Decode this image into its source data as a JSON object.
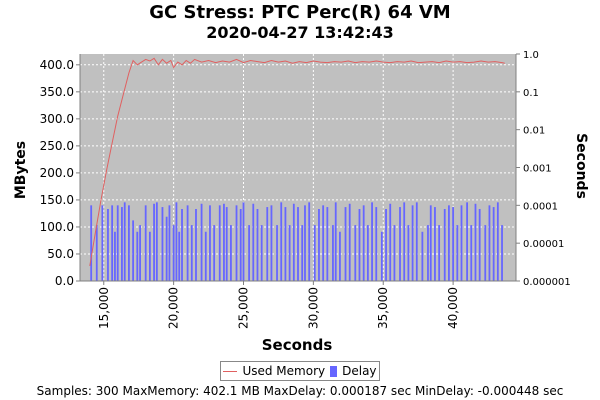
{
  "chart_data": {
    "type": "line",
    "title": "GC Stress: PTC Perc(R) 64 VM",
    "subtitle": "2020-04-27 13:42:43",
    "xlabel": "Seconds",
    "ylabel_left": "MBytes",
    "ylabel_right": "Seconds",
    "xlim": [
      13300,
      44500
    ],
    "ylim_left": [
      0,
      420
    ],
    "ylim_right": [
      1e-06,
      1.0
    ],
    "yscale_right": "log",
    "background": "#c0c0c0",
    "grid": true,
    "legend_position": "bottom-center",
    "x_tick_labels": [
      "15,000",
      "20,000",
      "25,000",
      "30,000",
      "35,000",
      "40,000"
    ],
    "y_left_tick_labels": [
      "0.0",
      "50.0",
      "100.0",
      "150.0",
      "200.0",
      "250.0",
      "300.0",
      "350.0",
      "400.0"
    ],
    "y_right_tick_labels": [
      "0.000001",
      "0.00001",
      "0.0001",
      "0.001",
      "0.01",
      "0.1",
      "1.0"
    ],
    "series": [
      {
        "name": "Used Memory",
        "axis": "left",
        "color": "#e06060",
        "x": [
          14000,
          14400,
          14800,
          15200,
          15600,
          16000,
          16400,
          16800,
          17100,
          17400,
          17700,
          18000,
          18300,
          18600,
          18900,
          19200,
          19500,
          19800,
          20000,
          20300,
          20600,
          20900,
          21200,
          21500,
          22000,
          22500,
          23000,
          23500,
          24000,
          24500,
          25000,
          25500,
          26000,
          26500,
          27000,
          27500,
          28000,
          28500,
          29000,
          29500,
          30000,
          30500,
          31000,
          31500,
          32000,
          32500,
          33000,
          33500,
          34000,
          34500,
          35000,
          35500,
          36000,
          36500,
          37000,
          37500,
          38000,
          38500,
          39000,
          39500,
          40000,
          40500,
          41000,
          41500,
          42000,
          42500,
          43000,
          43500,
          43700
        ],
        "values": [
          28,
          90,
          150,
          205,
          255,
          305,
          345,
          385,
          408,
          400,
          405,
          410,
          407,
          412,
          400,
          410,
          403,
          408,
          395,
          405,
          400,
          408,
          403,
          410,
          405,
          408,
          404,
          407,
          405,
          410,
          404,
          408,
          406,
          404,
          408,
          405,
          407,
          403,
          406,
          404,
          407,
          405,
          404,
          406,
          405,
          407,
          404,
          406,
          405,
          407,
          405,
          404,
          406,
          405,
          407,
          404,
          405,
          406,
          404,
          407,
          405,
          406,
          404,
          405,
          407,
          405,
          406,
          404,
          403
        ]
      },
      {
        "name": "Delay",
        "axis": "right",
        "type": "bar",
        "color": "#6666ff",
        "x": [
          14100,
          14500,
          14900,
          15300,
          15600,
          15800,
          16000,
          16300,
          16500,
          16800,
          17100,
          17400,
          17600,
          18000,
          18300,
          18600,
          18800,
          19200,
          19500,
          19700,
          20000,
          20200,
          20400,
          20600,
          21000,
          21300,
          21600,
          22000,
          22300,
          22600,
          22900,
          23300,
          23600,
          23800,
          24100,
          24500,
          24800,
          25000,
          25400,
          25700,
          26000,
          26300,
          26700,
          27000,
          27400,
          27700,
          28000,
          28300,
          28600,
          28900,
          29200,
          29400,
          29700,
          30100,
          30400,
          30700,
          31000,
          31400,
          31600,
          31900,
          32300,
          32600,
          33000,
          33300,
          33600,
          33900,
          34200,
          34500,
          34900,
          35200,
          35500,
          35800,
          36200,
          36500,
          36800,
          37100,
          37400,
          37800,
          38200,
          38400,
          38700,
          39000,
          39400,
          39700,
          40000,
          40300,
          40600,
          41000,
          41300,
          41600,
          41900,
          42300,
          42600,
          42900,
          43200,
          43500
        ],
        "values": [
          0.0001,
          3e-05,
          0.0001,
          8e-05,
          0.0001,
          2e-05,
          0.0001,
          9e-05,
          0.00012,
          0.0001,
          4e-05,
          2e-05,
          3e-05,
          0.0001,
          2e-05,
          0.00011,
          0.00012,
          9e-05,
          5e-05,
          0.0001,
          3e-05,
          0.00012,
          2e-05,
          8e-05,
          0.0001,
          3e-05,
          8e-05,
          0.00011,
          2e-05,
          0.0001,
          3e-05,
          0.0001,
          0.00011,
          9e-05,
          3e-05,
          0.0001,
          8e-05,
          0.00012,
          3e-05,
          0.00011,
          8e-05,
          3e-05,
          9e-05,
          0.0001,
          3e-05,
          0.00012,
          9e-05,
          3e-05,
          0.00011,
          9e-05,
          3e-05,
          0.0001,
          0.00012,
          3e-05,
          8e-05,
          0.0001,
          9e-05,
          3e-05,
          0.00012,
          2e-05,
          9e-05,
          0.00011,
          3e-05,
          8e-05,
          0.0001,
          3e-05,
          0.00012,
          9e-05,
          2e-05,
          8e-05,
          0.00011,
          3e-05,
          9e-05,
          0.00012,
          3e-05,
          0.0001,
          0.00012,
          2e-05,
          3e-05,
          0.0001,
          9e-05,
          3e-05,
          8e-05,
          0.0001,
          9e-05,
          3e-05,
          0.0001,
          0.00012,
          3e-05,
          0.00011,
          8e-05,
          3e-05,
          0.0001,
          9e-05,
          0.00012,
          3e-05
        ]
      }
    ]
  },
  "legend": {
    "memory_label": "Used Memory",
    "delay_label": "Delay"
  },
  "stats": {
    "text": "Samples: 300  MaxMemory: 402.1 MB  MaxDelay: 0.000187 sec  MinDelay: -0.000448 sec"
  }
}
